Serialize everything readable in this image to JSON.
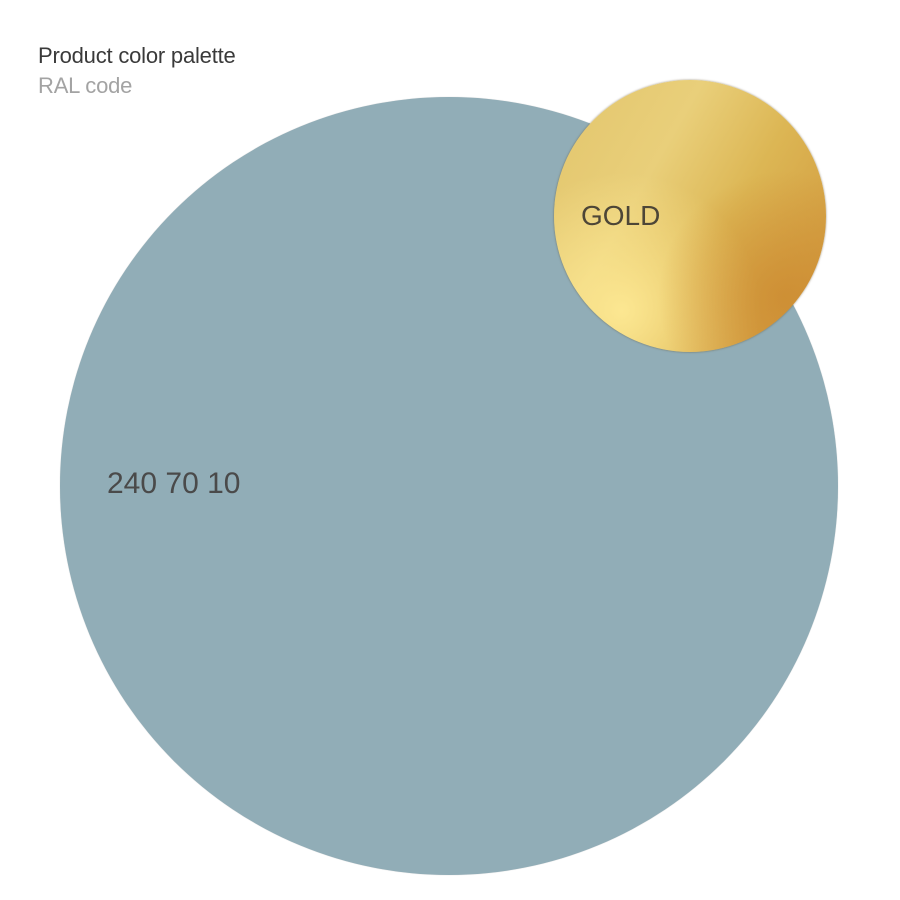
{
  "header": {
    "title": "Product color palette",
    "subtitle": "RAL code"
  },
  "swatches": [
    {
      "label": "240 70 10",
      "color": "#91adb7"
    },
    {
      "label": "GOLD",
      "color": "#e2c56c"
    }
  ]
}
